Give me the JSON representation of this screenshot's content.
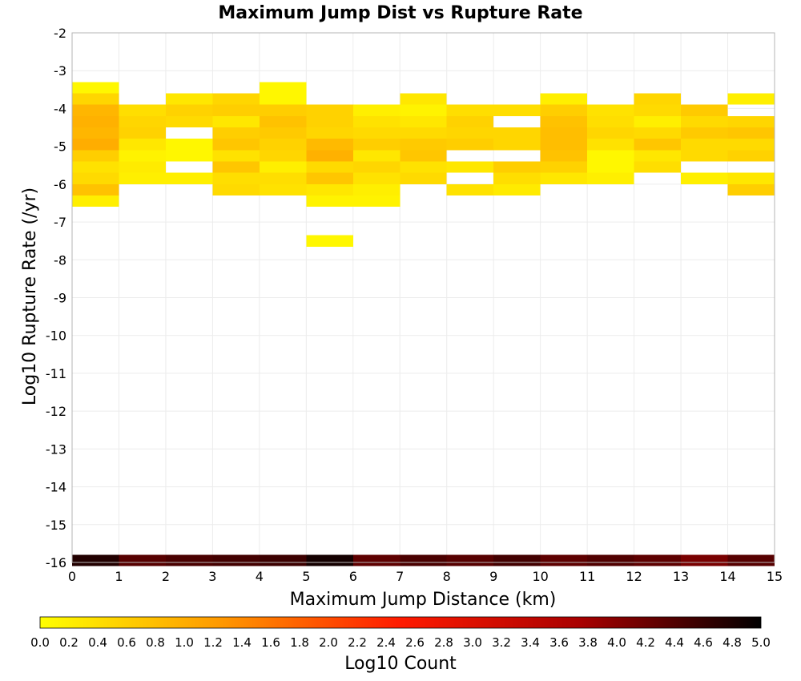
{
  "chart_data": {
    "type": "heatmap",
    "title": "Maximum Jump Dist vs Rupture Rate",
    "xlabel": "Maximum Jump Distance (km)",
    "ylabel": "Log10 Rupture Rate (/yr)",
    "xlim": [
      0,
      15
    ],
    "ylim": [
      -16,
      -2
    ],
    "x_bin_width": 1,
    "y_bin_height": 0.3,
    "xticks": [
      "0",
      "1",
      "2",
      "3",
      "4",
      "5",
      "6",
      "7",
      "8",
      "9",
      "10",
      "11",
      "12",
      "13",
      "14",
      "15"
    ],
    "yticks": [
      "-2",
      "-3",
      "-4",
      "-5",
      "-6",
      "-7",
      "-8",
      "-9",
      "-10",
      "-11",
      "-12",
      "-13",
      "-14",
      "-15",
      "-16"
    ],
    "grid": true,
    "colorbar": {
      "label": "Log10 Count",
      "range": [
        0.0,
        5.0
      ],
      "ticks": [
        "0.0",
        "0.2",
        "0.4",
        "0.6",
        "0.8",
        "1.0",
        "1.2",
        "1.4",
        "1.6",
        "1.8",
        "2.0",
        "2.2",
        "2.4",
        "2.6",
        "2.8",
        "3.0",
        "3.2",
        "3.4",
        "3.6",
        "3.8",
        "4.0",
        "4.2",
        "4.4",
        "4.6",
        "4.8",
        "5.0"
      ],
      "colors": [
        "#ffff00",
        "#ff9900",
        "#ff1a00",
        "#a80000",
        "#000000"
      ],
      "placement": "bottom"
    },
    "cells": [
      {
        "x": 0,
        "y": -3.45,
        "v": 0.1
      },
      {
        "x": 0,
        "y": -3.75,
        "v": 0.5
      },
      {
        "x": 0,
        "y": -4.05,
        "v": 0.9
      },
      {
        "x": 0,
        "y": -4.35,
        "v": 0.95
      },
      {
        "x": 0,
        "y": -4.65,
        "v": 0.9
      },
      {
        "x": 0,
        "y": -4.95,
        "v": 1.0
      },
      {
        "x": 0,
        "y": -5.25,
        "v": 0.6
      },
      {
        "x": 0,
        "y": -5.55,
        "v": 0.35
      },
      {
        "x": 0,
        "y": -5.85,
        "v": 0.45
      },
      {
        "x": 0,
        "y": -6.15,
        "v": 0.75
      },
      {
        "x": 0,
        "y": -6.45,
        "v": 0.2
      },
      {
        "x": 1,
        "y": -4.05,
        "v": 0.4
      },
      {
        "x": 1,
        "y": -4.35,
        "v": 0.5
      },
      {
        "x": 1,
        "y": -4.65,
        "v": 0.55
      },
      {
        "x": 1,
        "y": -4.95,
        "v": 0.3
      },
      {
        "x": 1,
        "y": -5.25,
        "v": 0.15
      },
      {
        "x": 1,
        "y": -5.55,
        "v": 0.25
      },
      {
        "x": 1,
        "y": -5.85,
        "v": 0.2
      },
      {
        "x": 2,
        "y": -3.75,
        "v": 0.3
      },
      {
        "x": 2,
        "y": -4.05,
        "v": 0.55
      },
      {
        "x": 2,
        "y": -4.35,
        "v": 0.45
      },
      {
        "x": 2,
        "y": -4.95,
        "v": 0.1
      },
      {
        "x": 2,
        "y": -5.25,
        "v": 0.1
      },
      {
        "x": 2,
        "y": -5.85,
        "v": 0.2
      },
      {
        "x": 3,
        "y": -3.75,
        "v": 0.5
      },
      {
        "x": 3,
        "y": -4.05,
        "v": 0.6
      },
      {
        "x": 3,
        "y": -4.35,
        "v": 0.3
      },
      {
        "x": 3,
        "y": -4.65,
        "v": 0.6
      },
      {
        "x": 3,
        "y": -4.95,
        "v": 0.7
      },
      {
        "x": 3,
        "y": -5.25,
        "v": 0.35
      },
      {
        "x": 3,
        "y": -5.55,
        "v": 0.7
      },
      {
        "x": 3,
        "y": -5.85,
        "v": 0.4
      },
      {
        "x": 3,
        "y": -6.15,
        "v": 0.45
      },
      {
        "x": 4,
        "y": -3.45,
        "v": 0.1
      },
      {
        "x": 4,
        "y": -3.75,
        "v": 0.1
      },
      {
        "x": 4,
        "y": -4.05,
        "v": 0.6
      },
      {
        "x": 4,
        "y": -4.35,
        "v": 0.75
      },
      {
        "x": 4,
        "y": -4.65,
        "v": 0.65
      },
      {
        "x": 4,
        "y": -4.95,
        "v": 0.55
      },
      {
        "x": 4,
        "y": -5.25,
        "v": 0.5
      },
      {
        "x": 4,
        "y": -5.55,
        "v": 0.2
      },
      {
        "x": 4,
        "y": -5.85,
        "v": 0.4
      },
      {
        "x": 4,
        "y": -6.15,
        "v": 0.35
      },
      {
        "x": 5,
        "y": -4.05,
        "v": 0.55
      },
      {
        "x": 5,
        "y": -4.35,
        "v": 0.55
      },
      {
        "x": 5,
        "y": -4.65,
        "v": 0.5
      },
      {
        "x": 5,
        "y": -4.95,
        "v": 0.85
      },
      {
        "x": 5,
        "y": -5.25,
        "v": 0.95
      },
      {
        "x": 5,
        "y": -5.55,
        "v": 0.45
      },
      {
        "x": 5,
        "y": -5.85,
        "v": 0.7
      },
      {
        "x": 5,
        "y": -6.15,
        "v": 0.3
      },
      {
        "x": 5,
        "y": -6.45,
        "v": 0.15
      },
      {
        "x": 5,
        "y": -7.5,
        "v": 0.1
      },
      {
        "x": 6,
        "y": -4.05,
        "v": 0.2
      },
      {
        "x": 6,
        "y": -4.35,
        "v": 0.35
      },
      {
        "x": 6,
        "y": -4.65,
        "v": 0.45
      },
      {
        "x": 6,
        "y": -4.95,
        "v": 0.6
      },
      {
        "x": 6,
        "y": -5.25,
        "v": 0.3
      },
      {
        "x": 6,
        "y": -5.55,
        "v": 0.5
      },
      {
        "x": 6,
        "y": -5.85,
        "v": 0.35
      },
      {
        "x": 6,
        "y": -6.15,
        "v": 0.2
      },
      {
        "x": 6,
        "y": -6.45,
        "v": 0.15
      },
      {
        "x": 7,
        "y": -3.75,
        "v": 0.3
      },
      {
        "x": 7,
        "y": -4.05,
        "v": 0.15
      },
      {
        "x": 7,
        "y": -4.35,
        "v": 0.3
      },
      {
        "x": 7,
        "y": -4.65,
        "v": 0.45
      },
      {
        "x": 7,
        "y": -4.95,
        "v": 0.65
      },
      {
        "x": 7,
        "y": -5.25,
        "v": 0.7
      },
      {
        "x": 7,
        "y": -5.55,
        "v": 0.35
      },
      {
        "x": 7,
        "y": -5.85,
        "v": 0.45
      },
      {
        "x": 8,
        "y": -4.05,
        "v": 0.4
      },
      {
        "x": 8,
        "y": -4.35,
        "v": 0.55
      },
      {
        "x": 8,
        "y": -4.65,
        "v": 0.5
      },
      {
        "x": 8,
        "y": -4.95,
        "v": 0.6
      },
      {
        "x": 8,
        "y": -5.55,
        "v": 0.3
      },
      {
        "x": 8,
        "y": -6.15,
        "v": 0.35
      },
      {
        "x": 9,
        "y": -4.05,
        "v": 0.4
      },
      {
        "x": 9,
        "y": -4.65,
        "v": 0.5
      },
      {
        "x": 9,
        "y": -4.95,
        "v": 0.5
      },
      {
        "x": 9,
        "y": -5.55,
        "v": 0.6
      },
      {
        "x": 9,
        "y": -5.85,
        "v": 0.4
      },
      {
        "x": 9,
        "y": -6.15,
        "v": 0.25
      },
      {
        "x": 10,
        "y": -3.75,
        "v": 0.2
      },
      {
        "x": 10,
        "y": -4.05,
        "v": 0.6
      },
      {
        "x": 10,
        "y": -4.35,
        "v": 0.75
      },
      {
        "x": 10,
        "y": -4.65,
        "v": 0.8
      },
      {
        "x": 10,
        "y": -4.95,
        "v": 0.8
      },
      {
        "x": 10,
        "y": -5.25,
        "v": 0.75
      },
      {
        "x": 10,
        "y": -5.55,
        "v": 0.55
      },
      {
        "x": 10,
        "y": -5.85,
        "v": 0.3
      },
      {
        "x": 11,
        "y": -4.05,
        "v": 0.35
      },
      {
        "x": 11,
        "y": -4.35,
        "v": 0.4
      },
      {
        "x": 11,
        "y": -4.65,
        "v": 0.5
      },
      {
        "x": 11,
        "y": -4.95,
        "v": 0.35
      },
      {
        "x": 11,
        "y": -5.25,
        "v": 0.1
      },
      {
        "x": 11,
        "y": -5.55,
        "v": 0.1
      },
      {
        "x": 11,
        "y": -5.85,
        "v": 0.2
      },
      {
        "x": 12,
        "y": -3.75,
        "v": 0.5
      },
      {
        "x": 12,
        "y": -4.05,
        "v": 0.45
      },
      {
        "x": 12,
        "y": -4.35,
        "v": 0.2
      },
      {
        "x": 12,
        "y": -4.65,
        "v": 0.45
      },
      {
        "x": 12,
        "y": -4.95,
        "v": 0.7
      },
      {
        "x": 12,
        "y": -5.25,
        "v": 0.3
      },
      {
        "x": 12,
        "y": -5.55,
        "v": 0.4
      },
      {
        "x": 13,
        "y": -4.05,
        "v": 0.65
      },
      {
        "x": 13,
        "y": -4.35,
        "v": 0.45
      },
      {
        "x": 13,
        "y": -4.65,
        "v": 0.65
      },
      {
        "x": 13,
        "y": -4.95,
        "v": 0.45
      },
      {
        "x": 13,
        "y": -5.25,
        "v": 0.45
      },
      {
        "x": 13,
        "y": -5.85,
        "v": 0.2
      },
      {
        "x": 14,
        "y": -3.75,
        "v": 0.2
      },
      {
        "x": 14,
        "y": -4.35,
        "v": 0.5
      },
      {
        "x": 14,
        "y": -4.65,
        "v": 0.7
      },
      {
        "x": 14,
        "y": -4.95,
        "v": 0.45
      },
      {
        "x": 14,
        "y": -5.25,
        "v": 0.55
      },
      {
        "x": 14,
        "y": -5.85,
        "v": 0.3
      },
      {
        "x": 14,
        "y": -6.15,
        "v": 0.6
      },
      {
        "x": 0,
        "y": -15.95,
        "v": 4.75
      },
      {
        "x": 1,
        "y": -15.95,
        "v": 4.35
      },
      {
        "x": 2,
        "y": -15.95,
        "v": 4.45
      },
      {
        "x": 3,
        "y": -15.95,
        "v": 4.5
      },
      {
        "x": 4,
        "y": -15.95,
        "v": 4.55
      },
      {
        "x": 5,
        "y": -15.95,
        "v": 4.85
      },
      {
        "x": 6,
        "y": -15.95,
        "v": 4.3
      },
      {
        "x": 7,
        "y": -15.95,
        "v": 4.45
      },
      {
        "x": 8,
        "y": -15.95,
        "v": 4.35
      },
      {
        "x": 9,
        "y": -15.95,
        "v": 4.5
      },
      {
        "x": 10,
        "y": -15.95,
        "v": 4.3
      },
      {
        "x": 11,
        "y": -15.95,
        "v": 4.4
      },
      {
        "x": 12,
        "y": -15.95,
        "v": 4.3
      },
      {
        "x": 13,
        "y": -15.95,
        "v": 4.1
      },
      {
        "x": 14,
        "y": -15.95,
        "v": 4.35
      }
    ]
  }
}
